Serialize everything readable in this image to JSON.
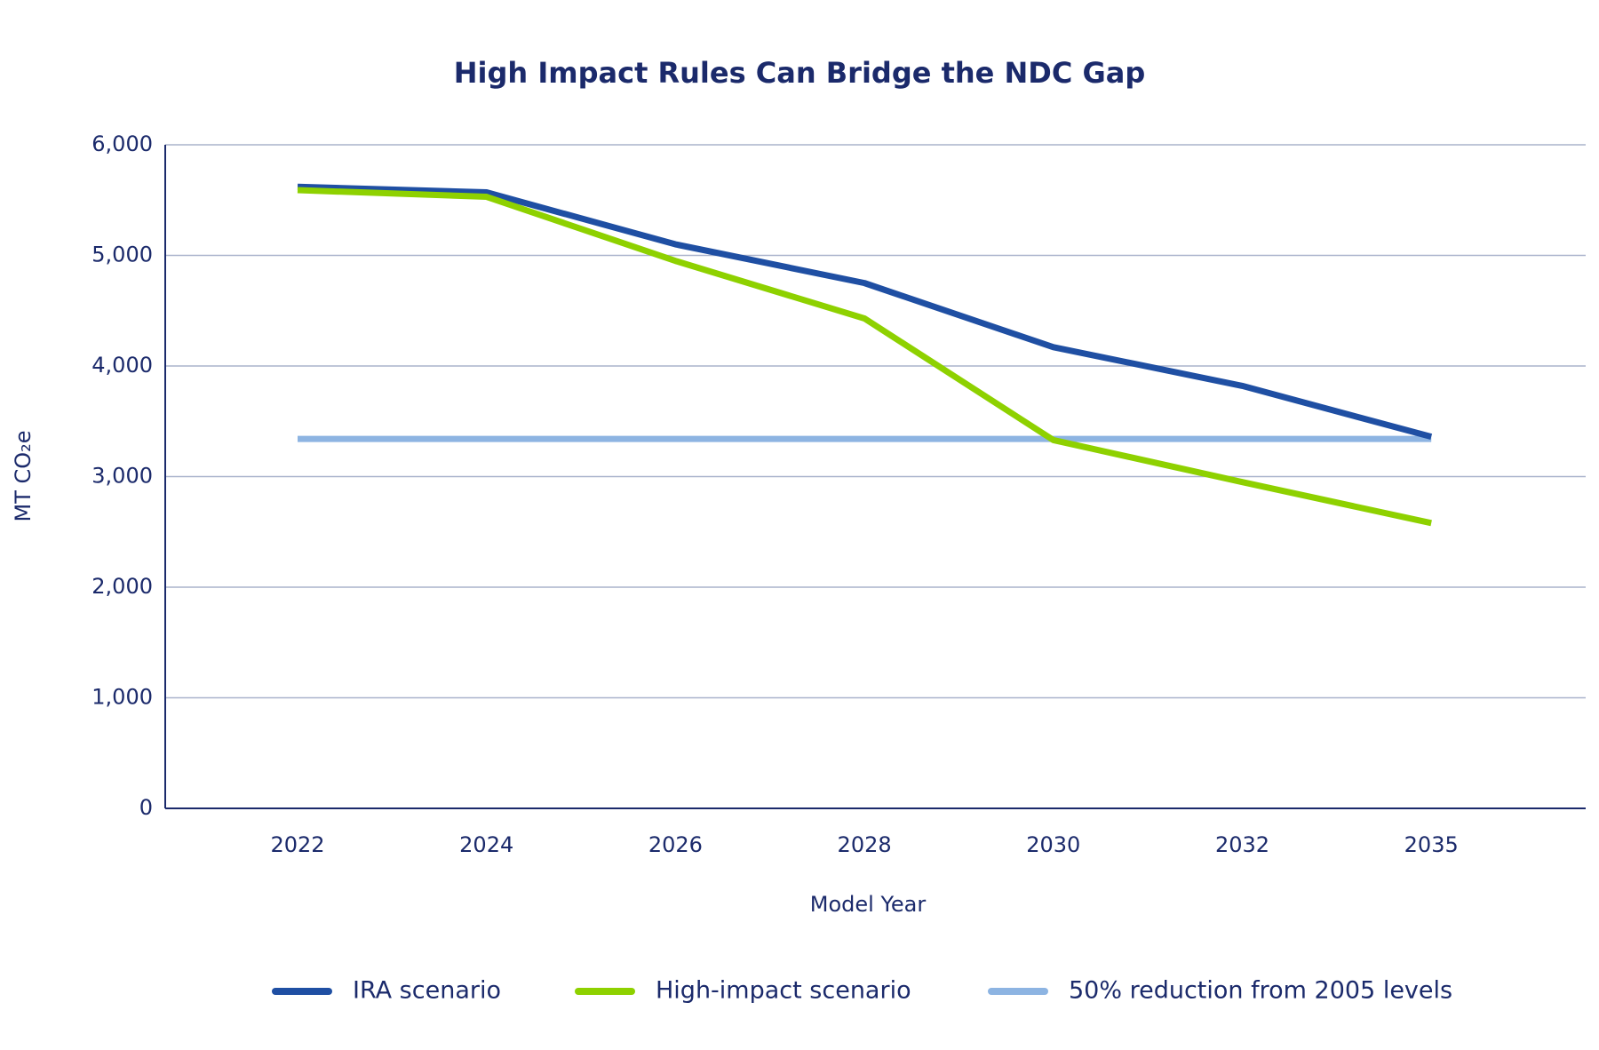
{
  "chart_data": {
    "type": "line",
    "title": "High Impact Rules Can Bridge the NDC Gap",
    "x_label": "Model Year",
    "y_label": "MT CO₂e",
    "categories": [
      "2022",
      "2024",
      "2026",
      "2028",
      "2030",
      "2032",
      "2035"
    ],
    "series": [
      {
        "name": "IRA scenario",
        "color": "#1f4fa3",
        "values": [
          5620,
          5570,
          5100,
          4750,
          4170,
          3820,
          3360
        ]
      },
      {
        "name": "High-impact scenario",
        "color": "#8ed100",
        "values": [
          5590,
          5530,
          4950,
          4430,
          3330,
          2950,
          2580
        ]
      },
      {
        "name": "50% reduction from 2005 levels",
        "color": "#8db4e2",
        "values": [
          3340,
          3340,
          3340,
          3340,
          3340,
          3340,
          3340
        ]
      }
    ],
    "ylim": [
      0,
      6000
    ],
    "yticks": [
      0,
      {
        "value": 1000,
        "label": "1,000"
      },
      {
        "value": 2000,
        "label": "2,000"
      },
      {
        "value": 3000,
        "label": "3,000"
      },
      {
        "value": 4000,
        "label": "4,000"
      },
      {
        "value": 5000,
        "label": "5,000"
      },
      {
        "value": 6000,
        "label": "6,000"
      }
    ],
    "grid": true,
    "legend": "bottom"
  }
}
